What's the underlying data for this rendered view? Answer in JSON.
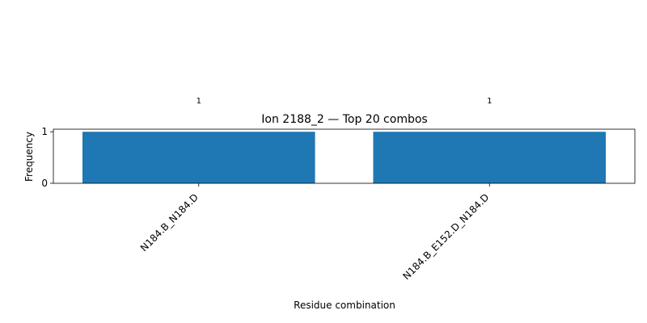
{
  "chart_data": {
    "type": "bar",
    "title": "Ion 2188_2 — Top 20 combos",
    "xlabel": "Residue combination",
    "ylabel": "Frequency",
    "categories": [
      "N184.B_N184.D",
      "N184.B_E152.D_N184.D"
    ],
    "values": [
      1,
      1
    ],
    "data_labels": [
      "1",
      "1"
    ],
    "yticks": [
      0,
      1
    ],
    "ylim": [
      0,
      1.05
    ],
    "grid": false,
    "legend": "none",
    "bar_color": "#1f77b4"
  }
}
